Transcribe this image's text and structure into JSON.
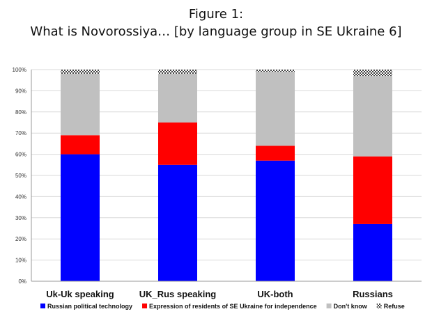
{
  "chart_data": {
    "type": "bar",
    "stacked": true,
    "title": "Figure 1:",
    "subtitle": "What is Novorossiya… [by language group in SE Ukraine 6]",
    "categories": [
      "Uk-Uk speaking",
      "UK_Rus speaking",
      "UK-both",
      "Russians"
    ],
    "series": [
      {
        "name": "Russian political technology",
        "color": "#0000ff",
        "pattern": "solid",
        "values": [
          60,
          55,
          57,
          27
        ]
      },
      {
        "name": "Expression of residents of SE Ukraine for independence",
        "color": "#ff0000",
        "pattern": "solid",
        "values": [
          9,
          20,
          7,
          32
        ]
      },
      {
        "name": "Don't know",
        "color": "#c0c0c0",
        "pattern": "solid",
        "values": [
          29,
          23,
          35,
          38
        ]
      },
      {
        "name": "Refuse",
        "color": "#404040",
        "pattern": "checker",
        "values": [
          2,
          2,
          1,
          3
        ]
      }
    ],
    "ylim": [
      0,
      100
    ],
    "yticks": [
      "0%",
      "10%",
      "20%",
      "30%",
      "40%",
      "50%",
      "60%",
      "70%",
      "80%",
      "90%",
      "100%"
    ],
    "grid": true,
    "legend": "bottom"
  }
}
